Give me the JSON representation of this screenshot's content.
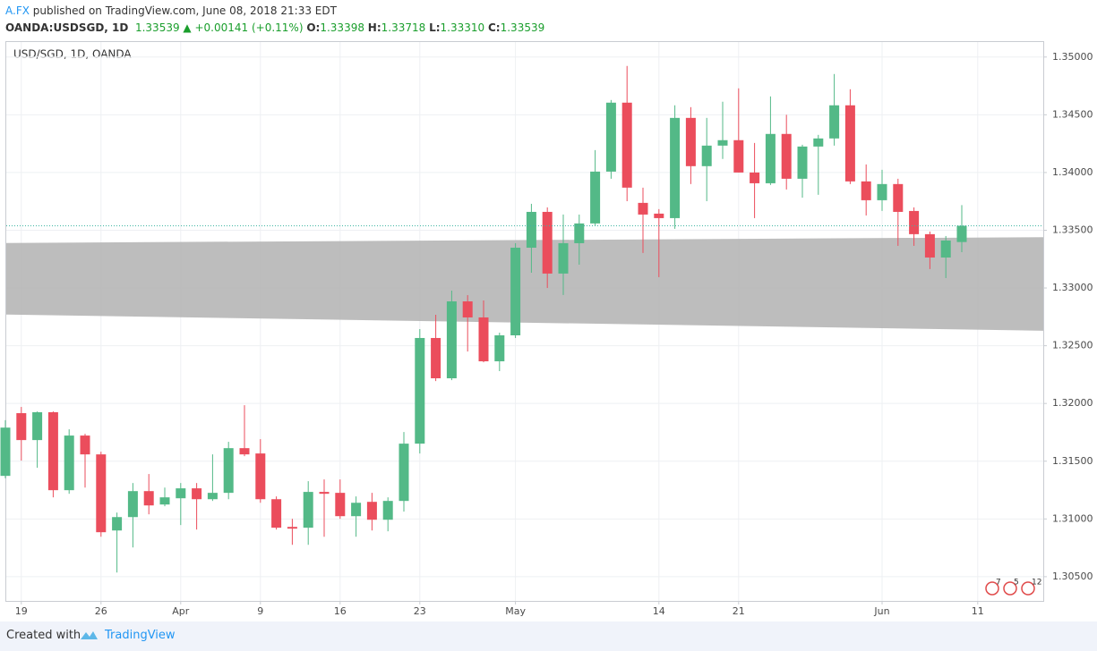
{
  "header": {
    "author": "A.FX",
    "published": "published on TradingView.com, June 08, 2018 21:33 EDT",
    "symbol": "OANDA:USDSGD, 1D",
    "price": "1.33539",
    "change": "+0.00141 (+0.11%)",
    "ohlc": [
      {
        "label": "O:",
        "value": "1.33398"
      },
      {
        "label": "H:",
        "value": "1.33718"
      },
      {
        "label": "L:",
        "value": "1.33310"
      },
      {
        "label": "C:",
        "value": "1.33539"
      }
    ]
  },
  "chart_data": {
    "type": "candlestick",
    "legend": "USD/SGD, 1D, OANDA",
    "up_color": "#53b987",
    "down_color": "#eb4d5c",
    "band_color": "#b2b2b2",
    "grid": true,
    "categories": [
      null,
      "19",
      null,
      null,
      null,
      null,
      "26",
      null,
      null,
      null,
      null,
      "Apr",
      null,
      null,
      null,
      null,
      "9",
      null,
      null,
      null,
      null,
      "16",
      null,
      null,
      null,
      null,
      "23",
      null,
      null,
      null,
      null,
      null,
      "May",
      null,
      null,
      null,
      null,
      null,
      null,
      null,
      null,
      "14",
      null,
      null,
      null,
      null,
      "21",
      null,
      null,
      null,
      null,
      null,
      null,
      null,
      null,
      "Jun",
      null,
      null,
      null,
      null,
      null,
      "11"
    ],
    "open": [
      1.31373,
      1.31916,
      1.31683,
      1.31924,
      1.31249,
      1.31722,
      1.31559,
      1.309,
      1.31016,
      1.31241,
      1.31125,
      1.31179,
      1.31265,
      1.31171,
      1.31226,
      1.31613,
      1.31567,
      1.31171,
      1.30931,
      1.30924,
      1.31234,
      1.31226,
      1.31024,
      1.31148,
      1.30993,
      1.31156,
      1.31652,
      1.32567,
      1.32218,
      1.32884,
      1.32745,
      1.32365,
      1.3259,
      1.33349,
      1.33659,
      1.33125,
      1.33388,
      1.33559,
      1.34008,
      1.34605,
      1.33737,
      1.33644,
      1.33605,
      1.34473,
      1.34055,
      1.34233,
      1.3428,
      1.34,
      1.33907,
      1.34334,
      1.33946,
      1.34225,
      1.34295,
      1.34582,
      1.33923,
      1.3376,
      1.339,
      1.33667,
      1.33466,
      1.33264,
      1.33398,
      null
    ],
    "high": [
      1.31855,
      1.3197,
      1.31931,
      1.31931,
      1.31776,
      1.31737,
      1.31582,
      1.31055,
      1.31311,
      1.31389,
      1.31272,
      1.31311,
      1.31311,
      1.31559,
      1.31668,
      1.31985,
      1.31691,
      1.31195,
      1.31001,
      1.31327,
      1.31342,
      1.31342,
      1.31195,
      1.31226,
      1.31187,
      1.31753,
      1.32644,
      1.32768,
      1.32977,
      1.32938,
      1.32892,
      1.32613,
      1.33388,
      1.33729,
      1.33698,
      1.33636,
      1.33636,
      1.34194,
      1.34628,
      1.34923,
      1.33869,
      1.33683,
      1.34582,
      1.34566,
      1.34473,
      1.34613,
      1.34729,
      1.34256,
      1.34659,
      1.345,
      1.3424,
      1.34326,
      1.34853,
      1.34721,
      1.3407,
      1.34024,
      1.33946,
      1.33698,
      1.33489,
      1.3345,
      1.33718,
      null
    ],
    "low": [
      1.31352,
      1.31505,
      1.31443,
      1.31187,
      1.31218,
      1.31272,
      1.30846,
      1.30536,
      1.30753,
      1.3104,
      1.3111,
      1.30947,
      1.30908,
      1.31156,
      1.31171,
      1.31544,
      1.3114,
      1.30908,
      1.30776,
      1.30776,
      1.30846,
      1.31001,
      1.30846,
      1.309,
      1.30893,
      1.31063,
      1.31567,
      1.32194,
      1.32202,
      1.3245,
      1.32357,
      1.3228,
      1.32567,
      1.33132,
      1.33,
      1.32939,
      1.33202,
      1.33543,
      1.33946,
      1.33752,
      1.33303,
      1.33094,
      1.33512,
      1.339,
      1.33752,
      1.34117,
      1.34,
      1.33605,
      1.33892,
      1.33853,
      1.33783,
      1.33807,
      1.34233,
      1.339,
      1.33628,
      1.33667,
      1.33365,
      1.33365,
      1.33164,
      1.33086,
      1.3331,
      null
    ],
    "close": [
      1.31791,
      1.31683,
      1.31924,
      1.31249,
      1.31722,
      1.31559,
      1.30885,
      1.31016,
      1.31241,
      1.31117,
      1.31187,
      1.31265,
      1.31171,
      1.31226,
      1.31613,
      1.31559,
      1.31171,
      1.30924,
      1.30916,
      1.31234,
      1.31218,
      1.31024,
      1.3114,
      1.30993,
      1.31156,
      1.31652,
      1.32567,
      1.32218,
      1.32884,
      1.32745,
      1.32365,
      1.3259,
      1.33349,
      1.33659,
      1.33125,
      1.33388,
      1.33559,
      1.34008,
      1.34605,
      1.33869,
      1.33636,
      1.33605,
      1.34473,
      1.34055,
      1.34233,
      1.3428,
      1.34,
      1.33907,
      1.34334,
      1.33946,
      1.34225,
      1.34295,
      1.34582,
      1.33923,
      1.3376,
      1.339,
      1.33659,
      1.33466,
      1.33264,
      1.33411,
      1.33539,
      null
    ],
    "band": {
      "upper": [
        1.3339,
        1.3344
      ],
      "lower": [
        1.3277,
        1.3263
      ]
    },
    "ylim": [
      1.3029,
      1.3513
    ],
    "yticks": [
      {
        "value": 1.305,
        "label": "1.30500"
      },
      {
        "value": 1.31,
        "label": "1.31000"
      },
      {
        "value": 1.315,
        "label": "1.31500"
      },
      {
        "value": 1.32,
        "label": "1.32000"
      },
      {
        "value": 1.325,
        "label": "1.32500"
      },
      {
        "value": 1.33,
        "label": "1.33000"
      },
      {
        "value": 1.335,
        "label": "1.33500"
      },
      {
        "value": 1.34,
        "label": "1.34000"
      },
      {
        "value": 1.345,
        "label": "1.34500"
      },
      {
        "value": 1.35,
        "label": "1.35000"
      }
    ],
    "events": [
      "7",
      "5",
      "12"
    ]
  },
  "footer": {
    "created": "Created with",
    "brand": "TradingView"
  }
}
